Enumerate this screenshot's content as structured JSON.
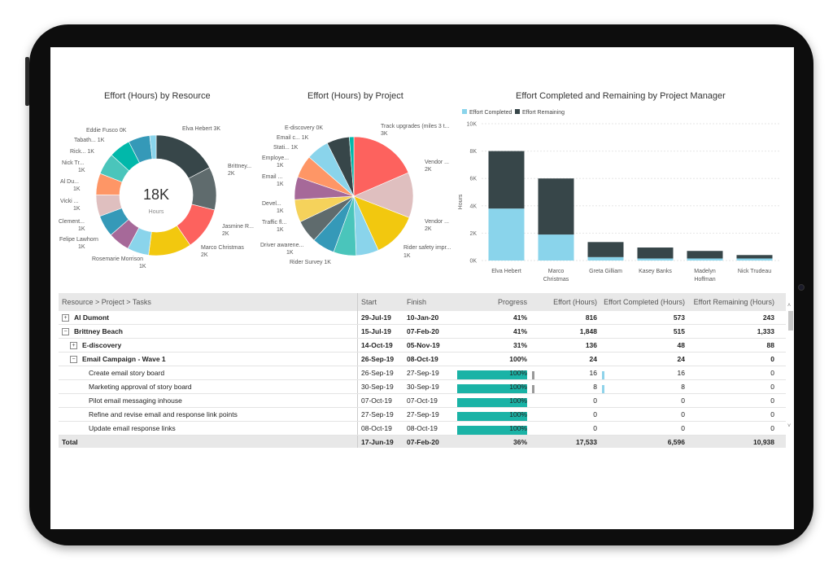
{
  "charts": {
    "resource": {
      "title": "Effort (Hours) by Resource",
      "center_value": "18K",
      "center_label": "Hours",
      "labels": [
        "Elva Hebert 3K",
        "Brittney...",
        "2K",
        "Jasmine R...",
        "2K",
        "Marco Christmas",
        "2K",
        "Rosemarie Morrison",
        "1K",
        "Felipe Lawhorn",
        "1K",
        "Clement...",
        "1K",
        "Vicki ...",
        "1K",
        "Al Du...",
        "1K",
        "Nick Tr...",
        "1K",
        "Rick... 1K",
        "Tabath... 1K",
        "Eddie Fusco 0K"
      ]
    },
    "project": {
      "title": "Effort (Hours) by Project",
      "labels": [
        "Track upgrades (miles 3 t...",
        "3K",
        "Vendor ...",
        "2K",
        "Vendor ...",
        "2K",
        "Rider safety impr...",
        "1K",
        "Rider Survey 1K",
        "Driver awarene...",
        "1K",
        "Traffic fl...",
        "1K",
        "Devel...",
        "1K",
        "Email ...",
        "1K",
        "Employe...",
        "1K",
        "Stati... 1K",
        "Email c... 1K",
        "E-discovery 0K"
      ]
    },
    "manager": {
      "title": "Effort Completed and Remaining by Project Manager",
      "legend": [
        "Effort Completed",
        "Effort Remaining"
      ],
      "ylabel": "Hours",
      "yticks": [
        "0K",
        "2K",
        "4K",
        "6K",
        "8K",
        "10K"
      ],
      "categories": [
        "Elva Hebert",
        "Marco Christmas",
        "Greta Gilliam",
        "Kasey Banks",
        "Madelyn Hoffman",
        "Nick Trudeau"
      ],
      "cat_lines": [
        [
          "Elva Hebert"
        ],
        [
          "Marco",
          "Christmas"
        ],
        [
          "Greta Gilliam"
        ],
        [
          "Kasey Banks"
        ],
        [
          "Madelyn",
          "Hoffman"
        ],
        [
          "Nick Trudeau"
        ]
      ]
    }
  },
  "chart_data": [
    {
      "type": "pie",
      "title": "Effort (Hours) by Resource",
      "categories": [
        "Elva Hebert",
        "Brittney...",
        "Jasmine R...",
        "Marco Christmas",
        "Rosemarie Morrison",
        "Felipe Lawhorn",
        "Clement...",
        "Vicki ...",
        "Al Du...",
        "Nick Tr...",
        "Rick...",
        "Tabath...",
        "Eddie Fusco"
      ],
      "values": [
        3000,
        2000,
        2000,
        2000,
        1000,
        1000,
        1000,
        1000,
        1000,
        1000,
        1000,
        1000,
        300
      ],
      "colors": [
        "#374649",
        "#5f6b6d",
        "#fd625e",
        "#f2c80f",
        "#8ad4eb",
        "#a66999",
        "#3599b8",
        "#dfbfbf",
        "#fe9666",
        "#4ac5bb",
        "#01b8aa",
        "#3599b8",
        "#8ad4eb"
      ]
    },
    {
      "type": "pie",
      "title": "Effort (Hours) by Project",
      "categories": [
        "Track upgrades (miles 3 t...",
        "Vendor ...",
        "Vendor ...",
        "Rider safety impr...",
        "Rider Survey",
        "Driver awarene...",
        "Traffic fl...",
        "Devel...",
        "Email ...",
        "Employe...",
        "Stati...",
        "Email c...",
        "E-discovery"
      ],
      "values": [
        3000,
        2000,
        2000,
        1000,
        1000,
        1000,
        1000,
        1000,
        1000,
        1000,
        1000,
        1000,
        200
      ],
      "colors": [
        "#fd625e",
        "#dfbfbf",
        "#f2c80f",
        "#8ad4eb",
        "#4ac5bb",
        "#3599b8",
        "#5f6b6d",
        "#f5d25b",
        "#a66999",
        "#fe9666",
        "#8ad4eb",
        "#374649",
        "#01b8aa"
      ]
    },
    {
      "type": "bar",
      "title": "Effort Completed and Remaining by Project Manager",
      "categories": [
        "Elva Hebert",
        "Marco Christmas",
        "Greta Gilliam",
        "Kasey Banks",
        "Madelyn Hoffman",
        "Nick Trudeau"
      ],
      "series": [
        {
          "name": "Effort Completed",
          "values": [
            3800,
            1900,
            250,
            150,
            150,
            150
          ],
          "color": "#8ad4eb"
        },
        {
          "name": "Effort Remaining",
          "values": [
            4200,
            4100,
            1100,
            800,
            550,
            250
          ],
          "color": "#374649"
        }
      ],
      "ylabel": "Hours",
      "ylim": [
        0,
        10000
      ],
      "stacked": true,
      "legend": "top-left",
      "grid": true
    }
  ],
  "table": {
    "headers": [
      "Resource > Project > Tasks",
      "Start",
      "Finish",
      "Progress",
      "Effort (Hours)",
      "Effort Completed (Hours)",
      "Effort Remaining (Hours)"
    ],
    "rows": [
      {
        "name": "Al Dumont",
        "level": 0,
        "exp": "+",
        "bold": true,
        "start": "29-Jul-19",
        "finish": "10-Jan-20",
        "progress": "41%",
        "effort": "816",
        "completed": "573",
        "remaining": "243"
      },
      {
        "name": "Brittney Beach",
        "level": 0,
        "exp": "−",
        "bold": true,
        "start": "15-Jul-19",
        "finish": "07-Feb-20",
        "progress": "41%",
        "effort": "1,848",
        "completed": "515",
        "remaining": "1,333"
      },
      {
        "name": "E-discovery",
        "level": 1,
        "exp": "+",
        "bold": true,
        "start": "14-Oct-19",
        "finish": "05-Nov-19",
        "progress": "31%",
        "effort": "136",
        "completed": "48",
        "remaining": "88"
      },
      {
        "name": "Email Campaign - Wave 1",
        "level": 1,
        "exp": "−",
        "bold": true,
        "start": "26-Sep-19",
        "finish": "08-Oct-19",
        "progress": "100%",
        "effort": "24",
        "completed": "24",
        "remaining": "0"
      },
      {
        "name": "Create email story board",
        "level": 2,
        "bold": false,
        "start": "26-Sep-19",
        "finish": "27-Sep-19",
        "progress": "100%",
        "bar": true,
        "effort": "16",
        "effortbar": "grey",
        "completed": "16",
        "compbar": true,
        "remaining": "0"
      },
      {
        "name": "Marketing approval of story board",
        "level": 2,
        "bold": false,
        "start": "30-Sep-19",
        "finish": "30-Sep-19",
        "progress": "100%",
        "bar": true,
        "effort": "8",
        "effortbar": "grey",
        "completed": "8",
        "compbar": true,
        "remaining": "0"
      },
      {
        "name": "Pilot email messaging inhouse",
        "level": 2,
        "bold": false,
        "start": "07-Oct-19",
        "finish": "07-Oct-19",
        "progress": "100%",
        "bar": true,
        "effort": "0",
        "completed": "0",
        "remaining": "0"
      },
      {
        "name": "Refine and revise email and response link points",
        "level": 2,
        "bold": false,
        "start": "27-Sep-19",
        "finish": "27-Sep-19",
        "progress": "100%",
        "bar": true,
        "effort": "0",
        "completed": "0",
        "remaining": "0"
      },
      {
        "name": "Update email response links",
        "level": 2,
        "bold": false,
        "start": "08-Oct-19",
        "finish": "08-Oct-19",
        "progress": "100%",
        "bar": true,
        "effort": "0",
        "completed": "0",
        "remaining": "0"
      }
    ],
    "total": {
      "name": "Total",
      "start": "17-Jun-19",
      "finish": "07-Feb-20",
      "progress": "36%",
      "effort": "17,533",
      "completed": "6,596",
      "remaining": "10,938"
    }
  }
}
